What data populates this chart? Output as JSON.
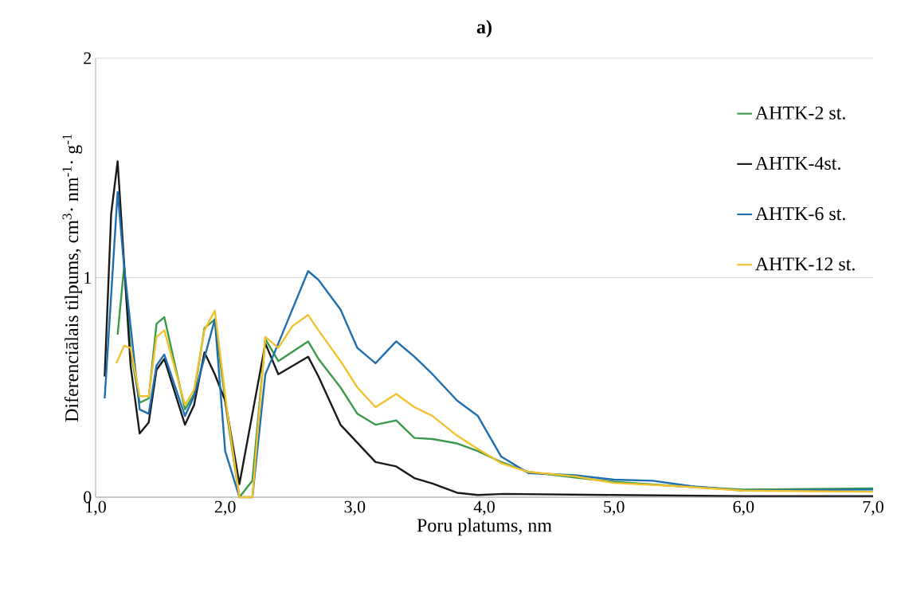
{
  "chart_data": {
    "type": "line",
    "title": "a)",
    "xlabel": "Poru platums, nm",
    "ylabel": "Diferenciālais tilpums, cm$^{3}$· nm$^{-1}$· g$^{-1}$",
    "xlim": [
      1.0,
      7.0
    ],
    "ylim": [
      0,
      2
    ],
    "xticks": [
      {
        "value": 1,
        "label": "1,0"
      },
      {
        "value": 2,
        "label": "2,0"
      },
      {
        "value": 3,
        "label": "3,0"
      },
      {
        "value": 4,
        "label": "4,0"
      },
      {
        "value": 5,
        "label": "5,0"
      },
      {
        "value": 6,
        "label": "6,0"
      },
      {
        "value": 7,
        "label": "7,0"
      }
    ],
    "yticks": [
      0,
      1,
      2
    ],
    "grid": "y",
    "legend": "right",
    "marker": "none",
    "line_style": "solid",
    "series": [
      {
        "name": "AHTK-2 st.",
        "color": "#3a9a4a",
        "x": [
          1.17,
          1.22,
          1.27,
          1.34,
          1.41,
          1.47,
          1.53,
          1.69,
          1.76,
          1.84,
          1.92,
          2.02,
          2.11,
          2.21,
          2.31,
          2.41,
          2.64,
          2.72,
          2.89,
          3.02,
          3.16,
          3.32,
          3.46,
          3.6,
          3.79,
          3.95,
          4.13,
          4.34,
          4.7,
          5.0,
          5.5,
          6.0,
          7.0
        ],
        "values": [
          0.74,
          1.05,
          0.67,
          0.43,
          0.45,
          0.79,
          0.82,
          0.4,
          0.47,
          0.77,
          0.81,
          0.35,
          0.0,
          0.075,
          0.72,
          0.62,
          0.71,
          0.63,
          0.5,
          0.38,
          0.33,
          0.35,
          0.27,
          0.265,
          0.245,
          0.21,
          0.16,
          0.115,
          0.09,
          0.07,
          0.05,
          0.035,
          0.04
        ]
      },
      {
        "name": "AHTK-4st.",
        "color": "#1a1a1a",
        "x": [
          1.07,
          1.12,
          1.17,
          1.27,
          1.34,
          1.41,
          1.47,
          1.53,
          1.69,
          1.76,
          1.84,
          1.92,
          2.0,
          2.11,
          2.31,
          2.41,
          2.64,
          2.72,
          2.89,
          3.16,
          3.32,
          3.46,
          3.6,
          3.79,
          3.95,
          4.15,
          5.0,
          6.0,
          7.0
        ],
        "values": [
          0.55,
          1.29,
          1.53,
          0.6,
          0.29,
          0.34,
          0.58,
          0.63,
          0.33,
          0.42,
          0.66,
          0.56,
          0.44,
          0.06,
          0.7,
          0.56,
          0.64,
          0.55,
          0.33,
          0.16,
          0.14,
          0.087,
          0.062,
          0.02,
          0.01,
          0.015,
          0.01,
          0.005,
          0.005
        ]
      },
      {
        "name": "AHTK-6 st.",
        "color": "#1f6fb0",
        "x": [
          1.07,
          1.17,
          1.22,
          1.34,
          1.41,
          1.47,
          1.53,
          1.69,
          1.76,
          1.92,
          2.0,
          2.11,
          2.21,
          2.31,
          2.41,
          2.64,
          2.72,
          2.89,
          3.02,
          3.16,
          3.32,
          3.46,
          3.6,
          3.79,
          3.95,
          4.13,
          4.34,
          4.7,
          5.0,
          5.3,
          5.6,
          6.0,
          7.0
        ],
        "values": [
          0.45,
          1.39,
          1.05,
          0.4,
          0.38,
          0.6,
          0.65,
          0.37,
          0.46,
          0.81,
          0.21,
          0.0,
          0.0,
          0.56,
          0.7,
          1.03,
          0.99,
          0.855,
          0.68,
          0.61,
          0.71,
          0.64,
          0.56,
          0.44,
          0.37,
          0.185,
          0.11,
          0.1,
          0.08,
          0.075,
          0.05,
          0.03,
          0.035
        ]
      },
      {
        "name": "AHTK-12 st.",
        "color": "#f2c12e",
        "x": [
          1.16,
          1.22,
          1.27,
          1.34,
          1.41,
          1.47,
          1.53,
          1.69,
          1.76,
          1.84,
          1.92,
          2.02,
          2.11,
          2.21,
          2.31,
          2.41,
          2.52,
          2.64,
          2.72,
          2.89,
          3.02,
          3.16,
          3.32,
          3.46,
          3.6,
          3.79,
          3.95,
          4.13,
          4.34,
          4.7,
          5.0,
          5.5,
          6.0,
          7.0
        ],
        "values": [
          0.61,
          0.69,
          0.68,
          0.46,
          0.46,
          0.73,
          0.76,
          0.42,
          0.49,
          0.76,
          0.85,
          0.37,
          0.0,
          0.0,
          0.73,
          0.68,
          0.78,
          0.83,
          0.76,
          0.62,
          0.5,
          0.41,
          0.47,
          0.41,
          0.37,
          0.28,
          0.22,
          0.155,
          0.115,
          0.095,
          0.065,
          0.05,
          0.03,
          0.025
        ]
      }
    ]
  }
}
